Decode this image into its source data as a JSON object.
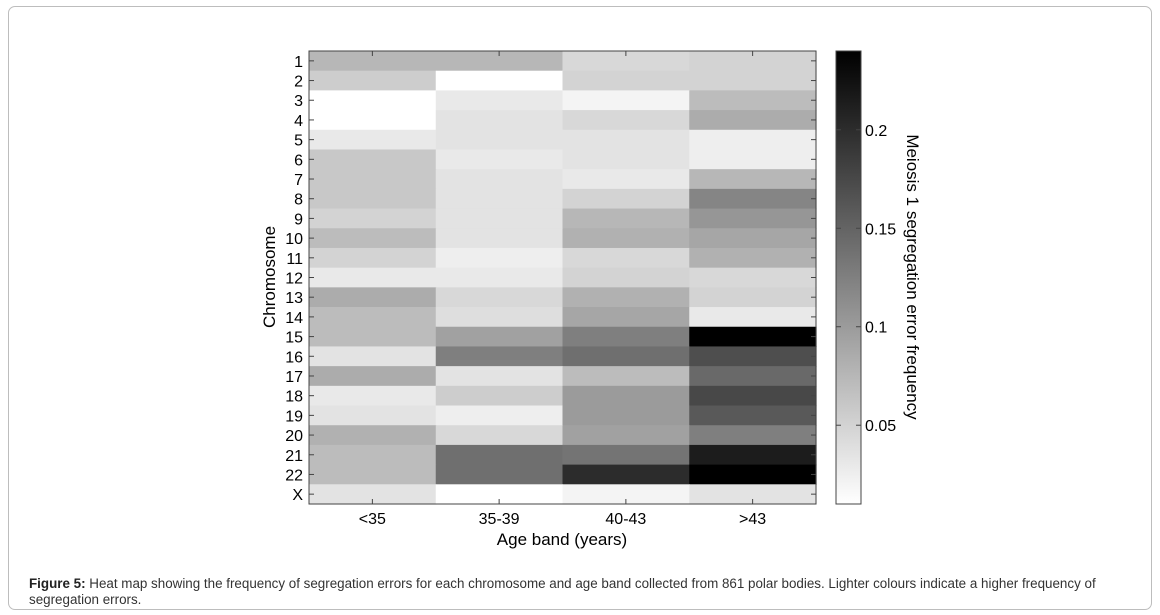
{
  "caption": {
    "label": "Figure 5:",
    "text": "Heat map showing the frequency of segregation errors for each chromosome and age band collected from 861 polar bodies. Lighter colours indicate a higher frequency of segregation errors."
  },
  "chart_data": {
    "type": "heatmap",
    "title": "",
    "xlabel": "Age band (years)",
    "ylabel": "Chromosome",
    "colorbar_label": "Meiosis 1 segregation error frequency",
    "colorbar_ticks": [
      0.05,
      0.1,
      0.15,
      0.2
    ],
    "colorbar_ticklabels": [
      "0.05",
      "0.1",
      "0.15",
      "0.2"
    ],
    "value_range": [
      0.01,
      0.24
    ],
    "colormap": "gray_reversed",
    "x_categories": [
      "<35",
      "35-39",
      "40-43",
      ">43"
    ],
    "y_categories": [
      "1",
      "2",
      "3",
      "4",
      "5",
      "6",
      "7",
      "8",
      "9",
      "10",
      "11",
      "12",
      "13",
      "14",
      "15",
      "16",
      "17",
      "18",
      "19",
      "20",
      "21",
      "22",
      "X"
    ],
    "values": [
      [
        0.075,
        0.075,
        0.045,
        0.05
      ],
      [
        0.055,
        0.01,
        0.05,
        0.05
      ],
      [
        0.01,
        0.03,
        0.02,
        0.07
      ],
      [
        0.01,
        0.035,
        0.045,
        0.085
      ],
      [
        0.03,
        0.035,
        0.035,
        0.025
      ],
      [
        0.06,
        0.03,
        0.035,
        0.025
      ],
      [
        0.06,
        0.035,
        0.03,
        0.075
      ],
      [
        0.06,
        0.035,
        0.05,
        0.12
      ],
      [
        0.05,
        0.035,
        0.075,
        0.105
      ],
      [
        0.07,
        0.035,
        0.08,
        0.09
      ],
      [
        0.05,
        0.025,
        0.045,
        0.08
      ],
      [
        0.03,
        0.03,
        0.05,
        0.045
      ],
      [
        0.085,
        0.045,
        0.08,
        0.05
      ],
      [
        0.07,
        0.04,
        0.09,
        0.03
      ],
      [
        0.07,
        0.095,
        0.125,
        0.24
      ],
      [
        0.035,
        0.125,
        0.14,
        0.17
      ],
      [
        0.085,
        0.035,
        0.07,
        0.145
      ],
      [
        0.03,
        0.055,
        0.1,
        0.175
      ],
      [
        0.035,
        0.025,
        0.1,
        0.16
      ],
      [
        0.08,
        0.045,
        0.095,
        0.125
      ],
      [
        0.07,
        0.14,
        0.135,
        0.215
      ],
      [
        0.07,
        0.14,
        0.2,
        0.24
      ],
      [
        0.035,
        0.01,
        0.02,
        0.035
      ]
    ]
  }
}
